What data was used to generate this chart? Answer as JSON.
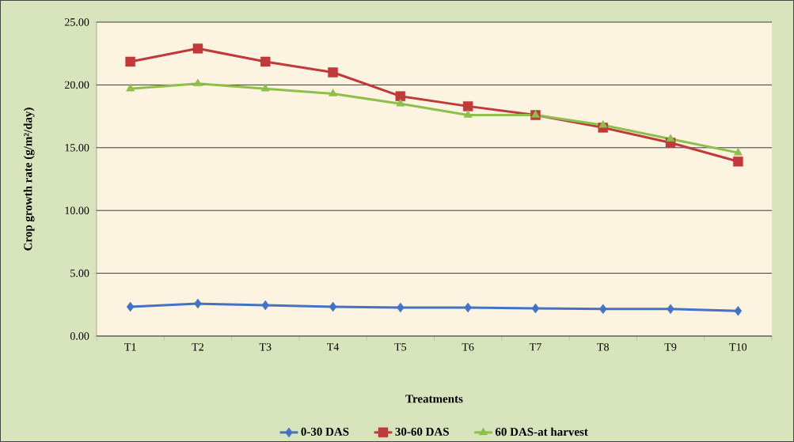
{
  "chart_data": {
    "type": "line",
    "xlabel": "Treatments",
    "ylabel": "Crop growth rate (g/m²/day)",
    "categories": [
      "T1",
      "T2",
      "T3",
      "T4",
      "T5",
      "T6",
      "T7",
      "T8",
      "T9",
      "T10"
    ],
    "series": [
      {
        "name": "0-30 DAS",
        "color": "#4472c4",
        "marker": "diamond",
        "values": [
          2.33,
          2.58,
          2.45,
          2.33,
          2.27,
          2.27,
          2.2,
          2.15,
          2.15,
          2.0
        ]
      },
      {
        "name": "30-60 DAS",
        "color": "#c0393b",
        "marker": "square",
        "values": [
          21.85,
          22.9,
          21.85,
          21.0,
          19.1,
          18.3,
          17.6,
          16.6,
          15.4,
          13.9
        ]
      },
      {
        "name": "60 DAS-at harvest",
        "color": "#8dbf4a",
        "marker": "triangle",
        "values": [
          19.7,
          20.1,
          19.7,
          19.3,
          18.5,
          17.6,
          17.6,
          16.8,
          15.7,
          14.6
        ]
      }
    ],
    "ylim": [
      0,
      25
    ],
    "yticks": [
      {
        "value": 0,
        "label": "0.00"
      },
      {
        "value": 5,
        "label": "5.00"
      },
      {
        "value": 10,
        "label": "10.00"
      },
      {
        "value": 15,
        "label": "15.00"
      },
      {
        "value": 20,
        "label": "20.00"
      },
      {
        "value": 25,
        "label": "25.00"
      }
    ],
    "grid": "y",
    "legend": "bottom",
    "line_style": "solid"
  }
}
